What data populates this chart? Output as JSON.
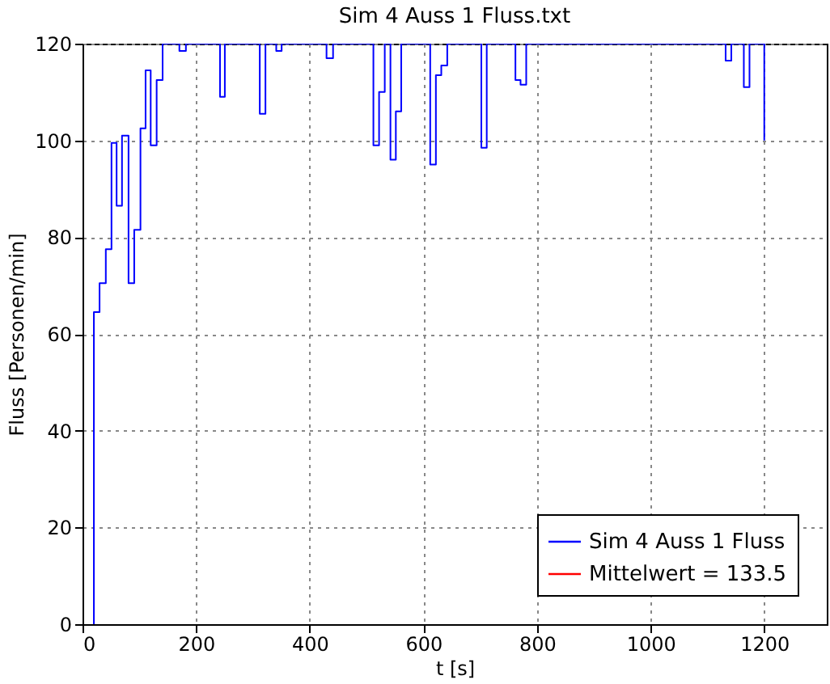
{
  "chart_data": {
    "type": "step",
    "title": "Sim 4 Auss 1 Fluss.txt",
    "xlabel": "t [s]",
    "ylabel": "Fluss [Personen/min]",
    "xlim": [
      0,
      1310
    ],
    "xticks": [
      0,
      200,
      400,
      600,
      800,
      1000,
      1200
    ],
    "ylim": [
      0,
      120
    ],
    "yticks": [
      0,
      20,
      40,
      60,
      80,
      100,
      120
    ],
    "grid": true,
    "legend": "bottom right",
    "line_style": "solid",
    "marker": "none",
    "series": [
      {
        "name": "Sim 4 Auss 1 Fluss",
        "color": "#0000ff",
        "x": [
          20,
          20,
          30,
          41,
          51,
          60,
          69.5,
          81,
          91,
          102,
          111,
          120,
          130.5,
          141,
          170.5,
          182,
          242,
          250.5,
          312,
          322,
          341,
          350.5,
          429.5,
          441,
          512,
          522,
          532,
          542,
          551.5,
          561,
          612,
          622,
          631.5,
          642,
          702,
          711.5,
          762,
          771,
          781,
          1132,
          1142,
          1164,
          1174,
          1200
        ],
        "values": [
          0,
          64.5,
          70.5,
          77.5,
          99.5,
          86.5,
          101,
          70.5,
          81.5,
          102.5,
          114.5,
          99,
          112.5,
          120,
          118.5,
          120,
          109,
          120,
          105.5,
          120,
          118.5,
          120,
          117,
          120,
          99,
          110,
          120,
          96,
          106,
          120,
          95,
          113.5,
          115.5,
          120,
          98.5,
          120,
          112.5,
          111.5,
          120,
          116.5,
          120,
          111,
          120,
          100
        ]
      },
      {
        "name": "Mittelwert = 133.5",
        "color": "#ff0000",
        "type": "line"
      }
    ]
  }
}
